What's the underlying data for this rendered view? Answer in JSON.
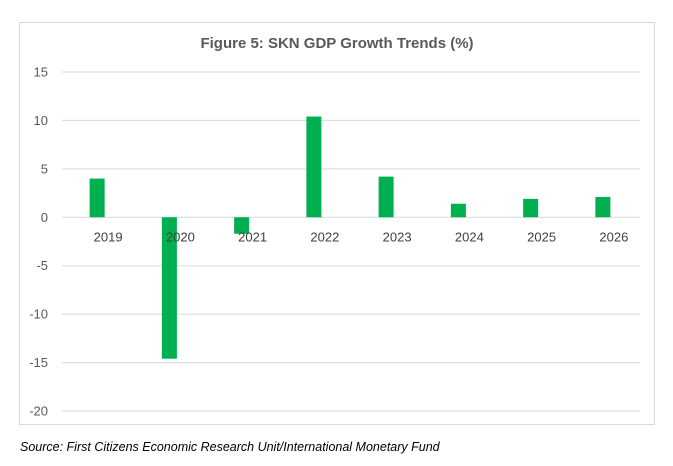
{
  "chart_data": {
    "type": "bar",
    "title": "Figure 5: SKN GDP Growth Trends (%)",
    "categories": [
      "2019",
      "2020",
      "2021",
      "2022",
      "2023",
      "2024",
      "2025",
      "2026"
    ],
    "values": [
      4.0,
      -14.6,
      -1.7,
      10.4,
      4.2,
      1.4,
      1.9,
      2.1
    ],
    "ylim": [
      -20,
      15
    ],
    "yticks": [
      15,
      10,
      5,
      0,
      -5,
      -10,
      -15,
      -20
    ],
    "xlabel": "",
    "ylabel": "",
    "grid": true,
    "legend": "none",
    "bar_color": "#00b050"
  },
  "source": "Source: First Citizens Economic Research Unit/International Monetary Fund"
}
